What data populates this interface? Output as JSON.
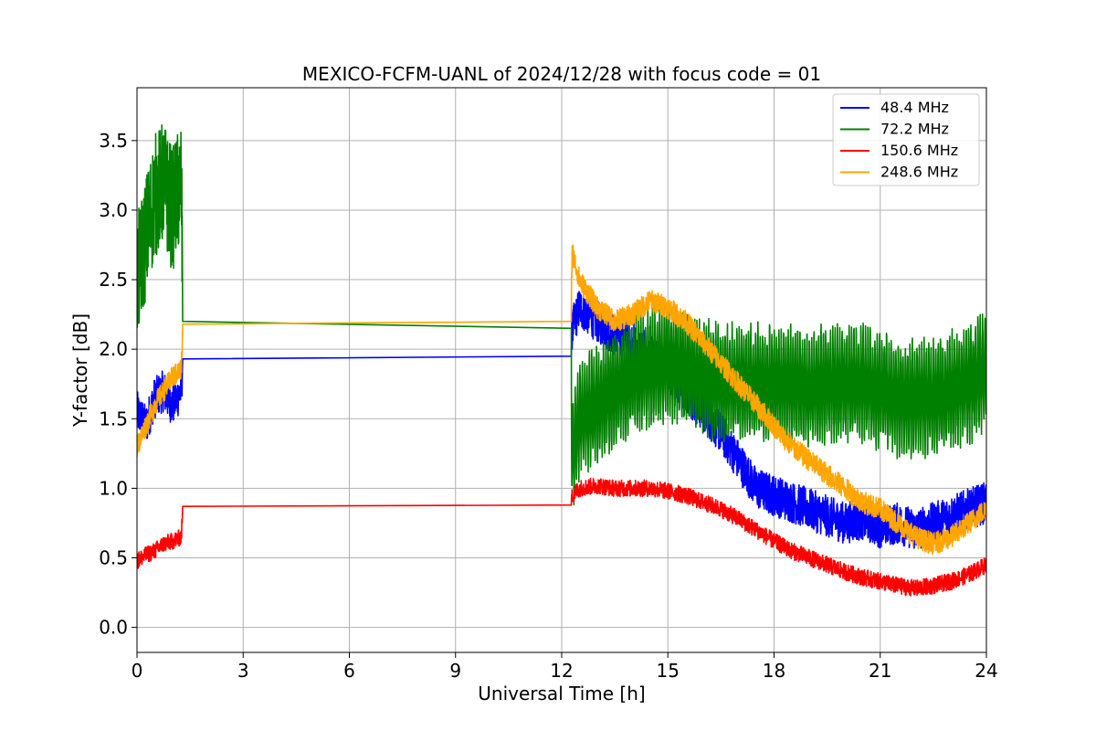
{
  "chart_data": {
    "type": "line",
    "title": "MEXICO-FCFM-UANL of 2024/12/28 with focus code = 01",
    "xlabel": "Universal Time [h]",
    "ylabel": "Y-factor [dB]",
    "xlim": [
      0,
      24
    ],
    "ylim": [
      -0.18,
      3.88
    ],
    "xticks": [
      0,
      3,
      6,
      9,
      12,
      15,
      18,
      21,
      24
    ],
    "xtick_labels": [
      "0",
      "3",
      "6",
      "9",
      "12",
      "15",
      "18",
      "21",
      "24"
    ],
    "yticks": [
      0.0,
      0.5,
      1.0,
      1.5,
      2.0,
      2.5,
      3.0,
      3.5
    ],
    "ytick_labels": [
      "0.0",
      "0.5",
      "1.0",
      "1.5",
      "2.0",
      "2.5",
      "3.0",
      "3.5"
    ],
    "grid": true,
    "legend_position": "top-right",
    "series": [
      {
        "name": " 48.4 MHz",
        "color": "#0000ff",
        "x": [
          0.0,
          0.25,
          0.5,
          0.75,
          1.0,
          1.25,
          1.3,
          12.25,
          12.3,
          12.5,
          13.0,
          13.5,
          14.0,
          14.5,
          15.0,
          15.5,
          16.0,
          16.5,
          17.0,
          17.5,
          18.0,
          18.5,
          19.0,
          19.5,
          20.0,
          20.5,
          21.0,
          21.5,
          22.0,
          22.5,
          23.0,
          23.5,
          24.0
        ],
        "y": [
          1.55,
          1.45,
          1.65,
          1.7,
          1.6,
          1.7,
          1.93,
          1.95,
          2.15,
          2.3,
          2.2,
          2.1,
          2.05,
          1.95,
          1.85,
          1.7,
          1.55,
          1.4,
          1.2,
          1.0,
          0.95,
          0.9,
          0.85,
          0.8,
          0.75,
          0.78,
          0.72,
          0.75,
          0.7,
          0.75,
          0.8,
          0.85,
          0.9
        ],
        "noise": 0.15
      },
      {
        "name": " 72.2 MHz",
        "color": "#008000",
        "x": [
          0.0,
          0.25,
          0.5,
          0.75,
          1.0,
          1.25,
          1.3,
          12.25,
          12.3,
          12.5,
          13.0,
          13.5,
          14.0,
          14.5,
          15.0,
          15.5,
          16.0,
          16.5,
          17.0,
          17.5,
          18.0,
          18.5,
          19.0,
          19.5,
          20.0,
          20.5,
          21.0,
          21.5,
          22.0,
          22.5,
          23.0,
          23.5,
          24.0
        ],
        "y": [
          2.5,
          2.8,
          3.1,
          3.2,
          3.0,
          3.2,
          2.2,
          2.15,
          1.2,
          1.5,
          1.6,
          1.7,
          1.8,
          1.85,
          1.9,
          1.85,
          1.8,
          1.75,
          1.75,
          1.75,
          1.75,
          1.75,
          1.7,
          1.75,
          1.75,
          1.75,
          1.7,
          1.65,
          1.65,
          1.65,
          1.7,
          1.75,
          1.85
        ],
        "noise": 0.45
      },
      {
        "name": " 150.6 MHz",
        "color": "#ff0000",
        "x": [
          0.0,
          0.25,
          0.5,
          0.75,
          1.0,
          1.25,
          1.3,
          12.25,
          12.3,
          12.5,
          13.0,
          13.5,
          14.0,
          14.5,
          15.0,
          15.5,
          16.0,
          16.5,
          17.0,
          17.5,
          18.0,
          18.5,
          19.0,
          19.5,
          20.0,
          20.5,
          21.0,
          21.5,
          22.0,
          22.5,
          23.0,
          23.5,
          24.0
        ],
        "y": [
          0.48,
          0.52,
          0.55,
          0.6,
          0.62,
          0.65,
          0.87,
          0.88,
          0.95,
          1.0,
          1.02,
          1.0,
          1.0,
          1.0,
          0.98,
          0.95,
          0.9,
          0.85,
          0.78,
          0.7,
          0.62,
          0.55,
          0.5,
          0.45,
          0.4,
          0.36,
          0.33,
          0.3,
          0.28,
          0.3,
          0.33,
          0.38,
          0.45
        ],
        "noise": 0.06
      },
      {
        "name": " 248.6 MHz",
        "color": "#ffa500",
        "x": [
          0.0,
          0.25,
          0.5,
          0.75,
          1.0,
          1.25,
          1.3,
          12.25,
          12.3,
          12.5,
          13.0,
          13.5,
          14.0,
          14.5,
          15.0,
          15.5,
          16.0,
          16.5,
          17.0,
          17.5,
          18.0,
          18.5,
          19.0,
          19.5,
          20.0,
          20.5,
          21.0,
          21.5,
          22.0,
          22.5,
          23.0,
          23.5,
          24.0
        ],
        "y": [
          1.3,
          1.45,
          1.6,
          1.7,
          1.8,
          1.85,
          2.18,
          2.2,
          2.7,
          2.5,
          2.3,
          2.2,
          2.25,
          2.35,
          2.3,
          2.2,
          2.05,
          1.9,
          1.75,
          1.6,
          1.45,
          1.3,
          1.2,
          1.1,
          1.0,
          0.9,
          0.85,
          0.75,
          0.65,
          0.6,
          0.65,
          0.75,
          0.85
        ],
        "noise": 0.08
      }
    ]
  }
}
